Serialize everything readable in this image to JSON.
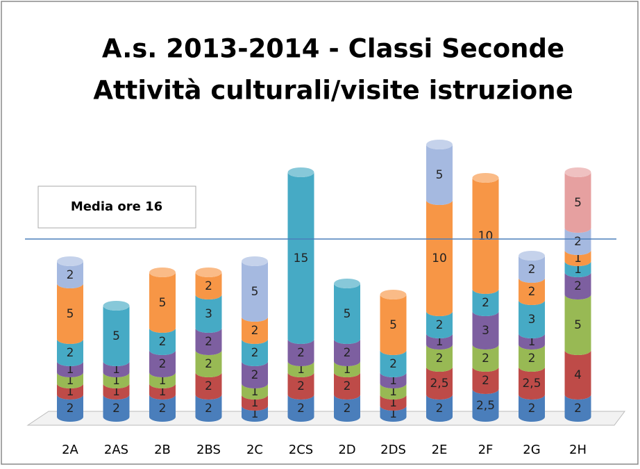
{
  "chart_data": {
    "type": "stacked-cylinder",
    "title": [
      "A.s. 2013-2014  - Classi  Seconde",
      "Attività culturali/visite istruzione"
    ],
    "annotation": "Media ore 16",
    "mean_line": 16,
    "ylim": [
      0,
      25
    ],
    "categories": [
      "2A",
      "2AS",
      "2B",
      "2BS",
      "2C",
      "2CS",
      "2D",
      "2DS",
      "2E",
      "2F",
      "2G",
      "2H"
    ],
    "series": [
      {
        "color": "#4a7ebb",
        "values": [
          2,
          2,
          2,
          2,
          1,
          2,
          2,
          1,
          2,
          2.5,
          2,
          2
        ],
        "value_labels": [
          "2",
          "2",
          "2",
          "2",
          "1",
          "2",
          "2",
          "1",
          "2",
          "2,5",
          "2",
          "2"
        ]
      },
      {
        "color": "#be4b48",
        "values": [
          1,
          1,
          1,
          2,
          1,
          2,
          2,
          1,
          2.5,
          2,
          2.5,
          4
        ],
        "value_labels": [
          "1",
          "1",
          "1",
          "2",
          "1",
          "2",
          "2",
          "1",
          "2,5",
          "2",
          "2,5",
          "4"
        ]
      },
      {
        "color": "#98b954",
        "values": [
          1,
          1,
          1,
          2,
          1,
          1,
          1,
          1,
          2,
          2,
          2,
          5
        ]
      },
      {
        "color": "#7d5fa0",
        "values": [
          1,
          1,
          2,
          2,
          2,
          2,
          2,
          1,
          1,
          3,
          1,
          2
        ]
      },
      {
        "color": "#46aac5",
        "values": [
          2,
          5,
          2,
          3,
          2,
          15,
          5,
          2,
          2,
          2,
          3,
          1
        ]
      },
      {
        "color": "#f79646",
        "values": [
          5,
          null,
          5,
          2,
          2,
          null,
          null,
          5,
          10,
          10,
          2,
          1
        ]
      },
      {
        "color": "#a5b9e0",
        "values": [
          2,
          null,
          null,
          null,
          5,
          null,
          null,
          null,
          5,
          null,
          2,
          2
        ]
      },
      {
        "color": "#e6a0a0",
        "values": [
          null,
          null,
          null,
          null,
          null,
          null,
          null,
          null,
          null,
          null,
          null,
          5
        ]
      }
    ]
  }
}
